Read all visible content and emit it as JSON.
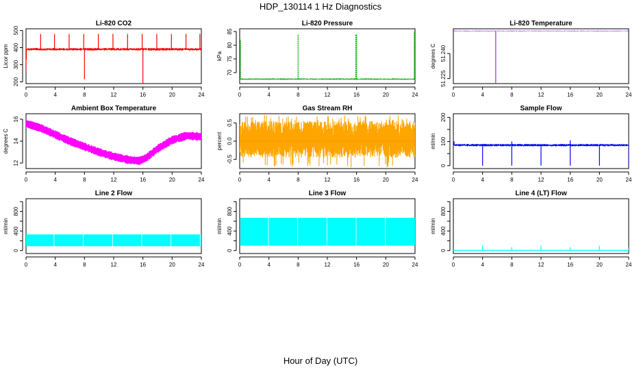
{
  "figure": {
    "title": "HDP_130114  1 Hz Diagnostics",
    "xlabel": "Hour of Day (UTC)"
  },
  "chart_data": [
    {
      "id": "co2",
      "type": "line",
      "title": "Li-820 CO2",
      "ylabel": "Licor ppm",
      "color": "#ff0000",
      "xlim": [
        0,
        24
      ],
      "ylim": [
        190,
        510
      ],
      "xticks": [
        0,
        4,
        8,
        12,
        16,
        20,
        24
      ],
      "yticks": [
        200,
        300,
        400,
        500
      ],
      "ytick_labels": [
        "200",
        "300",
        "400",
        "500"
      ],
      "series": [
        {
          "name": "CO2",
          "baseline": 390,
          "band": [
            383,
            398
          ],
          "spikes": [
            [
              0.0,
              260
            ],
            [
              0.05,
              330
            ],
            [
              2.0,
              480
            ],
            [
              3.9,
              480
            ],
            [
              5.9,
              480
            ],
            [
              7.9,
              480
            ],
            [
              8.0,
              215
            ],
            [
              9.9,
              480
            ],
            [
              11.9,
              480
            ],
            [
              13.9,
              480
            ],
            [
              15.9,
              480
            ],
            [
              16.0,
              190
            ],
            [
              17.9,
              480
            ],
            [
              19.9,
              480
            ],
            [
              21.9,
              480
            ],
            [
              23.8,
              480
            ]
          ]
        }
      ]
    },
    {
      "id": "pressure",
      "type": "line",
      "title": "Li-820 Pressure",
      "ylabel": "kPa",
      "color": "#00b000",
      "xlim": [
        0,
        24
      ],
      "ylim": [
        66,
        86
      ],
      "xticks": [
        0,
        4,
        8,
        12,
        16,
        20,
        24
      ],
      "yticks": [
        70,
        75,
        80,
        85
      ],
      "ytick_labels": [
        "70",
        "75",
        "80",
        "85"
      ],
      "series": [
        {
          "name": "Pressure",
          "baseline": 67.6,
          "band": [
            67.4,
            67.9
          ],
          "spikes": [
            [
              0.1,
              82
            ],
            [
              8.0,
              84
            ],
            [
              15.9,
              84
            ],
            [
              16.0,
              84
            ],
            [
              23.9,
              85
            ],
            [
              24.0,
              85
            ]
          ]
        }
      ]
    },
    {
      "id": "temperature",
      "type": "line",
      "title": "Li-820 Temperature",
      "ylabel": "degrees C",
      "color": "#a020f0",
      "xlim": [
        0,
        24
      ],
      "ylim": [
        51.222,
        51.2548
      ],
      "xticks": [
        0,
        4,
        8,
        12,
        16,
        20,
        24
      ],
      "yticks": [
        51.225,
        51.24
      ],
      "ytick_labels": [
        "51.225",
        "51.240"
      ],
      "series": [
        {
          "name": "Temperature",
          "baseline": 51.2535,
          "band": [
            51.2533,
            51.2537
          ],
          "spikes": [
            [
              5.8,
              51.222
            ]
          ]
        }
      ]
    },
    {
      "id": "ambient",
      "type": "line",
      "title": "Ambient Box Temperature",
      "ylabel": "degrees C",
      "color": "#ff00ff",
      "xlim": [
        0,
        24
      ],
      "ylim": [
        11.5,
        16.5
      ],
      "xticks": [
        0,
        4,
        8,
        12,
        16,
        20,
        24
      ],
      "yticks": [
        12,
        14,
        16
      ],
      "ytick_labels": [
        "12",
        "14",
        "16"
      ],
      "series": [
        {
          "name": "Ambient",
          "x": [
            0,
            2,
            4,
            6,
            8,
            10,
            12,
            14,
            15.5,
            16.5,
            18,
            20,
            22,
            24
          ],
          "y": [
            15.6,
            15.2,
            14.6,
            14.0,
            13.5,
            13.0,
            12.6,
            12.3,
            12.2,
            12.5,
            13.3,
            14.1,
            14.5,
            14.4
          ],
          "halfwidth": 0.35
        }
      ]
    },
    {
      "id": "rh",
      "type": "line",
      "title": "Gas Stream RH",
      "ylabel": "percent",
      "color": "#ffa500",
      "xlim": [
        0,
        24
      ],
      "ylim": [
        -0.75,
        0.75
      ],
      "xticks": [
        0,
        4,
        8,
        12,
        16,
        20,
        24
      ],
      "yticks": [
        -0.5,
        0,
        0.5
      ],
      "ytick_labels": [
        "-0.5",
        "0.0",
        "0.5"
      ],
      "series": [
        {
          "name": "RH",
          "center": 0.0,
          "band": [
            -0.45,
            0.55
          ],
          "extremes": [
            -0.72,
            0.72
          ]
        }
      ]
    },
    {
      "id": "sample",
      "type": "line",
      "title": "Sample Flow",
      "ylabel": "ml/min",
      "color": "#0000ff",
      "xlim": [
        0,
        24
      ],
      "ylim": [
        -12,
        215
      ],
      "xticks": [
        0,
        4,
        8,
        12,
        16,
        20,
        24
      ],
      "yticks": [
        0,
        50,
        100,
        150,
        200
      ],
      "ytick_labels": [
        "0",
        "",
        "100",
        "",
        "200"
      ],
      "series": [
        {
          "name": "Sample",
          "baseline": 85,
          "band": [
            80,
            90
          ],
          "spikes": [
            [
              0.1,
              100
            ],
            [
              4.0,
              0
            ],
            [
              8.0,
              0
            ],
            [
              8.0,
              100
            ],
            [
              12.0,
              0
            ],
            [
              16.0,
              0
            ],
            [
              16.0,
              105
            ],
            [
              20.0,
              0
            ],
            [
              24.0,
              0
            ]
          ]
        }
      ]
    },
    {
      "id": "line2",
      "type": "line",
      "title": "Line 2 Flow",
      "ylabel": "ml/min",
      "color": "#00ffff",
      "xlim": [
        0,
        24
      ],
      "ylim": [
        -60,
        1060
      ],
      "xticks": [
        0,
        4,
        8,
        12,
        16,
        20,
        24
      ],
      "yticks": [
        0,
        200,
        400,
        600,
        800,
        1000
      ],
      "ytick_labels": [
        "0",
        "",
        "400",
        "",
        "800",
        ""
      ],
      "series": [
        {
          "name": "Line 2",
          "band": [
            90,
            330
          ],
          "x_range": [
            0,
            24
          ],
          "gaps": [
            3.8,
            7.8,
            11.8,
            15.8,
            19.8,
            23.8
          ]
        }
      ]
    },
    {
      "id": "line3",
      "type": "line",
      "title": "Line 3 Flow",
      "ylabel": "ml/min",
      "color": "#00ffff",
      "xlim": [
        0,
        24
      ],
      "ylim": [
        -60,
        1060
      ],
      "xticks": [
        0,
        4,
        8,
        12,
        16,
        20,
        24
      ],
      "yticks": [
        0,
        200,
        400,
        600,
        800,
        1000
      ],
      "ytick_labels": [
        "0",
        "",
        "400",
        "",
        "800",
        ""
      ],
      "series": [
        {
          "name": "Line 3",
          "band": [
            100,
            670
          ],
          "x_range": [
            0.1,
            24
          ],
          "gaps": [
            3.9,
            7.9,
            11.9,
            15.9,
            19.9
          ]
        }
      ]
    },
    {
      "id": "line4",
      "type": "line",
      "title": "Line 4 (LT) Flow",
      "ylabel": "ml/min",
      "color": "#00ffff",
      "xlim": [
        0,
        24
      ],
      "ylim": [
        -60,
        1060
      ],
      "xticks": [
        0,
        4,
        8,
        12,
        16,
        20,
        24
      ],
      "yticks": [
        0,
        200,
        400,
        600,
        800,
        1000
      ],
      "ytick_labels": [
        "0",
        "",
        "400",
        "",
        "800",
        ""
      ],
      "series": [
        {
          "name": "Line 4",
          "baseline": 5,
          "spikes": [
            [
              4.0,
              100
            ],
            [
              8.0,
              70
            ],
            [
              12.0,
              100
            ],
            [
              16.0,
              70
            ],
            [
              20.0,
              100
            ],
            [
              24.0,
              60
            ]
          ]
        }
      ]
    }
  ]
}
